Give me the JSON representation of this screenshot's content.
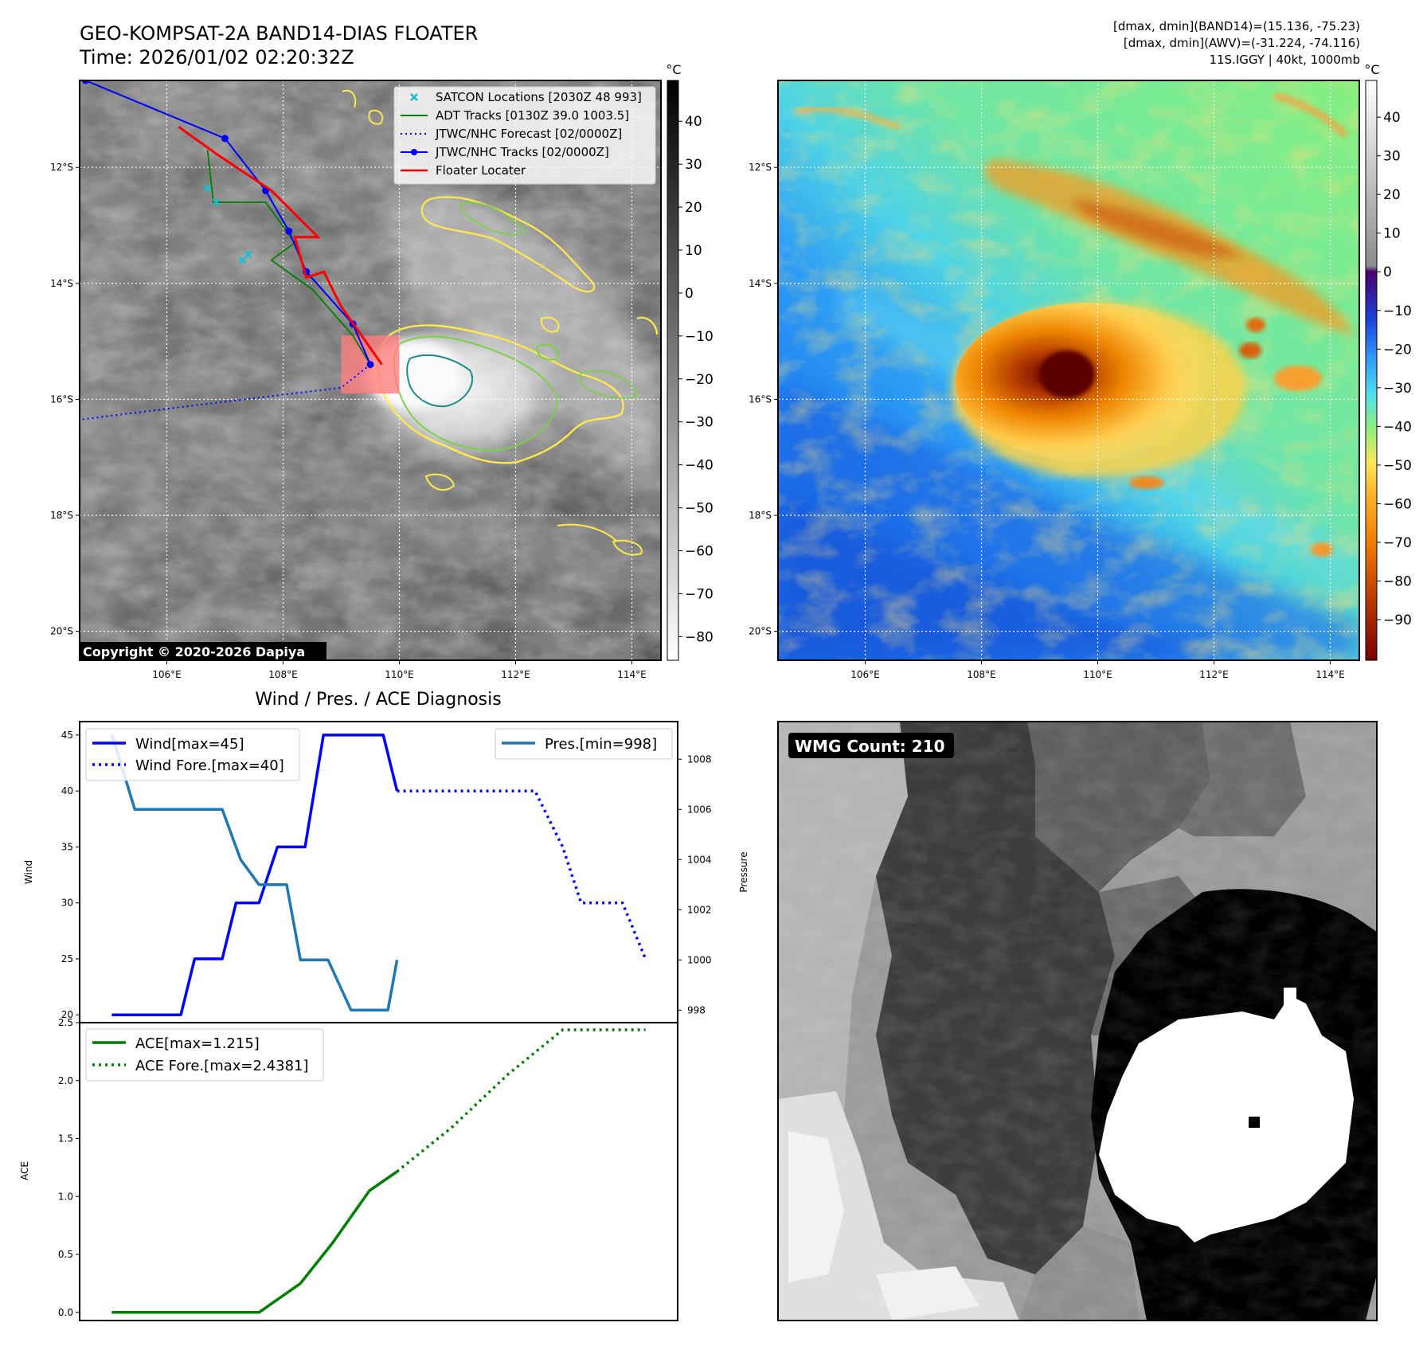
{
  "header": {
    "title_line1": "GEO-KOMPSAT-2A BAND14-DIAS FLOATER",
    "title_line2": "Time: 2026/01/02 02:20:32Z",
    "info_line1": "[dmax, dmin](BAND14)=(15.136, -75.23)",
    "info_line2": "[dmax, dmin](AWV)=(-31.224, -74.116)",
    "info_line3": "11S.IGGY | 40kt, 1000mb"
  },
  "copyright": "Copyright © 2020-2026 Dapiya",
  "colors": {
    "satcon": "#17becf",
    "adt": "#008000",
    "forecast": "#0000ff",
    "track": "#0000ff",
    "locater": "#ff0000",
    "contour_yellow": "#ffe84a",
    "contour_green": "#7ccf4a",
    "contour_teal": "#1a8a8a",
    "pres_line": "#1f77b4",
    "wind_line": "#0000ff",
    "ace_line": "#008000"
  },
  "map": {
    "lon_ticks": [
      "106°E",
      "108°E",
      "110°E",
      "112°E",
      "114°E"
    ],
    "lat_ticks": [
      "12°S",
      "14°S",
      "16°S",
      "18°S",
      "20°S"
    ],
    "extent": {
      "lon": [
        104.5,
        114.5
      ],
      "lat": [
        -10.5,
        -20.5
      ]
    },
    "colorbar_unit": "°C",
    "gray_colorbar_ticks": [
      "40",
      "30",
      "20",
      "10",
      "0",
      "−10",
      "−20",
      "−30",
      "−40",
      "−50",
      "−60",
      "−70",
      "−80"
    ],
    "color_colorbar_ticks": [
      "40",
      "30",
      "20",
      "10",
      "0",
      "−10",
      "−20",
      "−30",
      "−40",
      "−50",
      "−60",
      "−70",
      "−80",
      "−90"
    ],
    "legend": [
      {
        "label": "SATCON Locations [2030Z 48 993]",
        "style": "x"
      },
      {
        "label": "ADT Tracks [0130Z 39.0 1003.5]",
        "style": "solid-green"
      },
      {
        "label": "JTWC/NHC Forecast [02/0000Z]",
        "style": "dotted-blue"
      },
      {
        "label": "JTWC/NHC Tracks [02/0000Z]",
        "style": "dot-blue"
      },
      {
        "label": "Floater Locater",
        "style": "solid-red"
      }
    ],
    "jtwc_track": [
      [
        104.6,
        -10.5
      ],
      [
        107.0,
        -11.5
      ],
      [
        107.7,
        -12.4
      ],
      [
        108.1,
        -13.1
      ],
      [
        108.4,
        -13.8
      ],
      [
        109.2,
        -14.7
      ],
      [
        109.5,
        -15.4
      ]
    ],
    "jtwc_forecast": [
      [
        109.5,
        -15.4
      ],
      [
        109.0,
        -15.8
      ],
      [
        106.5,
        -16.1
      ],
      [
        104.5,
        -16.35
      ]
    ],
    "adt_track": [
      [
        106.7,
        -11.7
      ],
      [
        106.8,
        -12.6
      ],
      [
        107.7,
        -12.6
      ],
      [
        108.2,
        -13.3
      ],
      [
        107.8,
        -13.6
      ],
      [
        108.5,
        -14.1
      ],
      [
        109.2,
        -14.9
      ],
      [
        109.5,
        -15.4
      ]
    ],
    "satcon_points": [
      [
        106.7,
        -12.35
      ],
      [
        106.85,
        -12.6
      ],
      [
        107.3,
        -13.6
      ],
      [
        107.4,
        -13.5
      ]
    ],
    "floater_track": [
      [
        106.2,
        -11.3
      ],
      [
        106.9,
        -11.8
      ],
      [
        107.8,
        -12.4
      ],
      [
        108.6,
        -13.2
      ],
      [
        108.2,
        -13.2
      ],
      [
        108.4,
        -13.9
      ],
      [
        108.7,
        -13.8
      ],
      [
        109.0,
        -14.4
      ],
      [
        109.7,
        -15.4
      ]
    ],
    "floater_box": {
      "lon": [
        109.0,
        110.0
      ],
      "lat": [
        -14.9,
        -15.9
      ]
    }
  },
  "wmg": {
    "label": "WMG Count: 210"
  },
  "chart_data": [
    {
      "type": "line",
      "title": "Wind / Pres. / ACE Diagnosis",
      "ylabel": "Wind",
      "ylim": [
        19.3,
        46.2
      ],
      "yticks": [
        20,
        25,
        30,
        35,
        40,
        45
      ],
      "x": [
        0,
        12,
        24,
        36,
        48,
        60,
        72,
        84,
        96,
        108,
        120,
        132,
        144,
        156,
        168,
        180,
        192,
        204,
        216,
        228,
        240
      ],
      "series": [
        {
          "name": "Wind[max=45]",
          "style": "solid",
          "color": "#0000ff",
          "points": [
            [
              0,
              20
            ],
            [
              30,
              20
            ],
            [
              36,
              25
            ],
            [
              48,
              25
            ],
            [
              54,
              30
            ],
            [
              64,
              30
            ],
            [
              72,
              35
            ],
            [
              84,
              35
            ],
            [
              92,
              45
            ],
            [
              118,
              45
            ],
            [
              124,
              40
            ]
          ]
        },
        {
          "name": "Wind Fore.[max=40]",
          "style": "dotted",
          "color": "#0000ff",
          "points": [
            [
              124,
              40
            ],
            [
              184,
              40
            ],
            [
              196,
              35
            ],
            [
              204,
              30
            ],
            [
              222,
              30
            ],
            [
              232,
              25
            ]
          ]
        }
      ],
      "legend": "upper left"
    },
    {
      "type": "line",
      "ylabel": "Pressure",
      "ylim": [
        997.5,
        1009.5
      ],
      "yticks": [
        998,
        1000,
        1002,
        1004,
        1006,
        1008
      ],
      "series": [
        {
          "name": "Pres.[min=998]",
          "style": "solid",
          "color": "#1f77b4",
          "points": [
            [
              0,
              1009
            ],
            [
              10,
              1006
            ],
            [
              48,
              1006
            ],
            [
              56,
              1004
            ],
            [
              64,
              1003
            ],
            [
              76,
              1003
            ],
            [
              82,
              1000
            ],
            [
              94,
              1000
            ],
            [
              104,
              998
            ],
            [
              120,
              998
            ],
            [
              124,
              1000
            ]
          ]
        }
      ],
      "legend": "upper right"
    },
    {
      "type": "line",
      "ylabel": "ACE",
      "ylim": [
        -0.07,
        2.5
      ],
      "yticks": [
        "0.0",
        "0.5",
        "1.0",
        "1.5",
        "2.0",
        "2.5"
      ],
      "series": [
        {
          "name": "ACE[max=1.215]",
          "style": "solid",
          "color": "#008000",
          "points": [
            [
              0,
              0
            ],
            [
              64,
              0
            ],
            [
              82,
              0.25
            ],
            [
              96,
              0.6
            ],
            [
              112,
              1.05
            ],
            [
              124,
              1.215
            ]
          ]
        },
        {
          "name": "ACE Fore.[max=2.4381]",
          "style": "dotted",
          "color": "#008000",
          "points": [
            [
              124,
              1.215
            ],
            [
              148,
              1.6
            ],
            [
              172,
              2.05
            ],
            [
              196,
              2.438
            ],
            [
              232,
              2.438
            ]
          ]
        }
      ],
      "legend": "upper left"
    }
  ]
}
